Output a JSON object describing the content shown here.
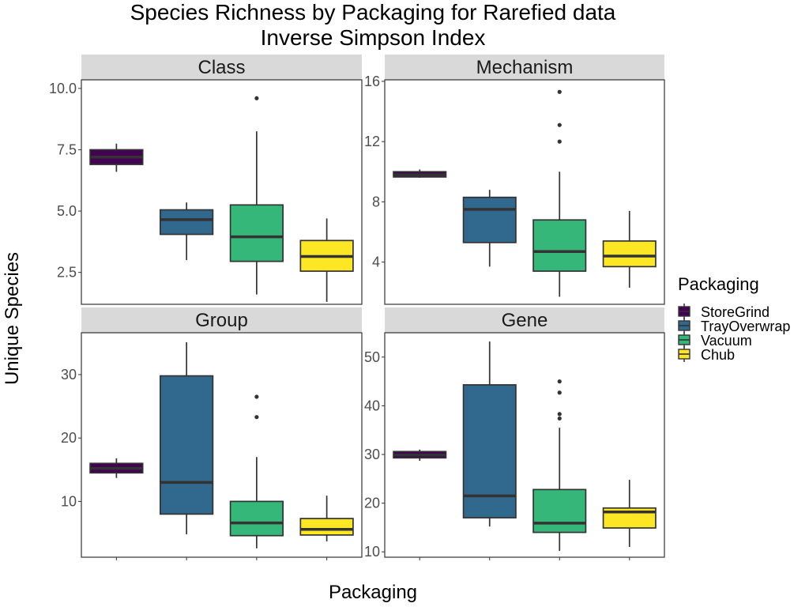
{
  "chart_data": {
    "type": "boxplot",
    "title_lines": [
      "Species Richness by Packaging for Rarefied data",
      "Inverse Simpson Index"
    ],
    "xlabel": "Packaging",
    "ylabel": "Unique Species",
    "categories": [
      "StoreGrind",
      "TrayOverwrap",
      "Vacuum",
      "Chub"
    ],
    "legend": {
      "title": "Packaging",
      "position": "right",
      "items": [
        {
          "label": "StoreGrind",
          "color": "#440154"
        },
        {
          "label": "TrayOverwrap",
          "color": "#31688E"
        },
        {
          "label": "Vacuum",
          "color": "#35B779"
        },
        {
          "label": "Chub",
          "color": "#FDE725"
        }
      ]
    },
    "grid": false,
    "panels": [
      {
        "name": "Class",
        "ylim": [
          1.2,
          10.35
        ],
        "yticks": [
          2.5,
          5.0,
          7.5,
          10.0
        ],
        "ytick_labels": [
          "2.5",
          "5.0",
          "7.5",
          "10.0"
        ],
        "boxes": [
          {
            "category": "StoreGrind",
            "min": 6.6,
            "q1": 6.9,
            "median": 7.2,
            "q3": 7.5,
            "max": 7.75,
            "outliers": []
          },
          {
            "category": "TrayOverwrap",
            "min": 3.0,
            "q1": 4.05,
            "median": 4.65,
            "q3": 5.05,
            "max": 5.35,
            "outliers": []
          },
          {
            "category": "Vacuum",
            "min": 1.6,
            "q1": 2.95,
            "median": 3.95,
            "q3": 5.25,
            "max": 8.25,
            "outliers": [
              9.6
            ]
          },
          {
            "category": "Chub",
            "min": 1.3,
            "q1": 2.55,
            "median": 3.15,
            "q3": 3.8,
            "max": 4.7,
            "outliers": []
          }
        ]
      },
      {
        "name": "Mechanism",
        "ylim": [
          1.2,
          16.1
        ],
        "yticks": [
          4,
          8,
          12,
          16
        ],
        "ytick_labels": [
          "4",
          "8",
          "12",
          "16"
        ],
        "boxes": [
          {
            "category": "StoreGrind",
            "min": 9.6,
            "q1": 9.65,
            "median": 9.8,
            "q3": 10.0,
            "max": 10.15,
            "outliers": []
          },
          {
            "category": "TrayOverwrap",
            "min": 3.7,
            "q1": 5.3,
            "median": 7.5,
            "q3": 8.3,
            "max": 8.8,
            "outliers": []
          },
          {
            "category": "Vacuum",
            "min": 1.7,
            "q1": 3.4,
            "median": 4.7,
            "q3": 6.8,
            "max": 10.0,
            "outliers": [
              12.0,
              13.1,
              15.3
            ]
          },
          {
            "category": "Chub",
            "min": 2.3,
            "q1": 3.7,
            "median": 4.4,
            "q3": 5.4,
            "max": 7.4,
            "outliers": []
          }
        ]
      },
      {
        "name": "Group",
        "ylim": [
          1.2,
          36.6
        ],
        "yticks": [
          10,
          20,
          30
        ],
        "ytick_labels": [
          "10",
          "20",
          "30"
        ],
        "boxes": [
          {
            "category": "StoreGrind",
            "min": 13.7,
            "q1": 14.5,
            "median": 15.2,
            "q3": 16.0,
            "max": 16.8,
            "outliers": []
          },
          {
            "category": "TrayOverwrap",
            "min": 4.8,
            "q1": 8.0,
            "median": 13.0,
            "q3": 29.8,
            "max": 35.1,
            "outliers": []
          },
          {
            "category": "Vacuum",
            "min": 2.6,
            "q1": 4.6,
            "median": 6.6,
            "q3": 10.0,
            "max": 17.0,
            "outliers": [
              23.3,
              26.5
            ]
          },
          {
            "category": "Chub",
            "min": 3.7,
            "q1": 4.7,
            "median": 5.6,
            "q3": 7.3,
            "max": 10.9,
            "outliers": []
          }
        ]
      },
      {
        "name": "Gene",
        "ylim": [
          8.9,
          55.0
        ],
        "yticks": [
          10,
          20,
          30,
          40,
          50
        ],
        "ytick_labels": [
          "10",
          "20",
          "30",
          "40",
          "50"
        ],
        "boxes": [
          {
            "category": "StoreGrind",
            "min": 28.7,
            "q1": 29.3,
            "median": 29.9,
            "q3": 30.6,
            "max": 31.0,
            "outliers": []
          },
          {
            "category": "TrayOverwrap",
            "min": 15.2,
            "q1": 17.0,
            "median": 21.5,
            "q3": 44.3,
            "max": 53.2,
            "outliers": []
          },
          {
            "category": "Vacuum",
            "min": 10.2,
            "q1": 14.0,
            "median": 15.9,
            "q3": 22.8,
            "max": 35.5,
            "outliers": [
              37.4,
              38.3,
              42.7,
              45.0
            ]
          },
          {
            "category": "Chub",
            "min": 11.0,
            "q1": 14.9,
            "median": 18.2,
            "q3": 19.0,
            "max": 24.8,
            "outliers": []
          }
        ]
      }
    ]
  }
}
